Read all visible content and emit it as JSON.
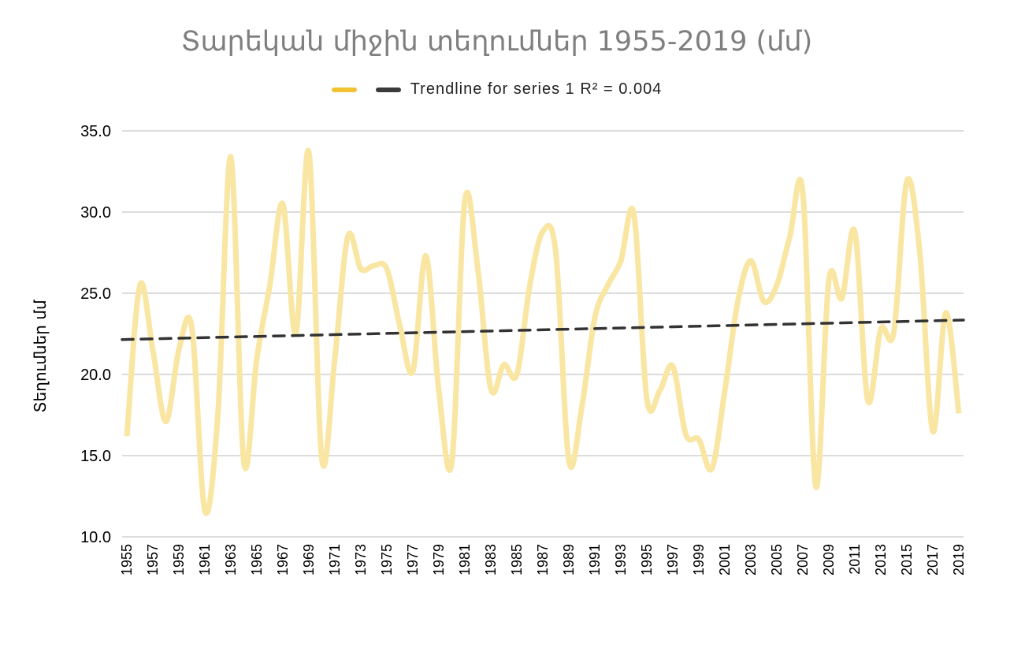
{
  "chart_data": {
    "type": "line",
    "title": "Տարեկան միջին տեղումներ 1955-2019 (մմ)",
    "xlabel": "",
    "ylabel": "Տեղումներ մմ",
    "ylim": [
      10,
      35
    ],
    "yticks": [
      "10.0",
      "15.0",
      "20.0",
      "25.0",
      "30.0",
      "35.0"
    ],
    "grid": true,
    "legend_position": "top",
    "legend": {
      "series_label": "",
      "trend_label": "Trendline for series 1 R² = 0.004"
    },
    "x": [
      1955,
      1956,
      1957,
      1958,
      1959,
      1960,
      1961,
      1962,
      1963,
      1964,
      1965,
      1966,
      1967,
      1968,
      1969,
      1970,
      1971,
      1972,
      1973,
      1974,
      1975,
      1976,
      1977,
      1978,
      1979,
      1980,
      1981,
      1982,
      1983,
      1984,
      1985,
      1986,
      1987,
      1988,
      1989,
      1990,
      1991,
      1992,
      1993,
      1994,
      1995,
      1996,
      1997,
      1998,
      1999,
      2000,
      2001,
      2002,
      2003,
      2004,
      2005,
      2006,
      2007,
      2008,
      2009,
      2010,
      2011,
      2012,
      2013,
      2014,
      2015,
      2016,
      2017,
      2018,
      2019
    ],
    "xticks": [
      "1955",
      "1957",
      "1959",
      "1961",
      "1963",
      "1965",
      "1967",
      "1969",
      "1971",
      "1973",
      "1975",
      "1977",
      "1979",
      "1981",
      "1983",
      "1985",
      "1987",
      "1989",
      "1991",
      "1993",
      "1995",
      "1997",
      "1999",
      "2001",
      "2003",
      "2005",
      "2007",
      "2009",
      "2011",
      "2013",
      "2015",
      "2017",
      "2019"
    ],
    "series": [
      {
        "values": [
          16.2,
          25.5,
          21.5,
          17.1,
          21.5,
          22.9,
          11.6,
          17.5,
          33.4,
          14.6,
          21.0,
          25.5,
          30.5,
          22.5,
          33.7,
          14.8,
          21.0,
          28.5,
          26.5,
          26.7,
          26.5,
          23.0,
          20.2,
          27.3,
          19.0,
          14.6,
          30.7,
          26.5,
          19.1,
          20.6,
          20.0,
          25.5,
          28.8,
          27.5,
          14.7,
          18.0,
          23.5,
          25.5,
          27.0,
          29.9,
          18.5,
          19.0,
          20.5,
          16.3,
          16.0,
          14.2,
          19.0,
          24.5,
          27.0,
          24.5,
          25.5,
          28.5,
          31.2,
          13.1,
          25.8,
          24.7,
          28.8,
          18.4,
          22.8,
          22.6,
          31.9,
          27.5,
          16.5,
          23.8,
          17.6
        ],
        "color": "#f9e6a3"
      }
    ],
    "trendline": {
      "type": "linear",
      "start": [
        1955,
        22.15
      ],
      "end": [
        2019,
        23.35
      ],
      "color": "#333333"
    }
  }
}
